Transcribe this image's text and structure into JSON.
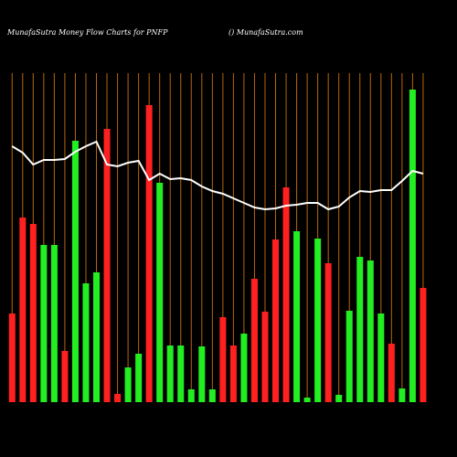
{
  "chart_data": {
    "type": "bar",
    "title": "MunafaSutra  Money Flow  Charts for PNFP",
    "subtitle": "() MunafaSutra.com",
    "categories": [
      null,
      null,
      null,
      null,
      null,
      null,
      null,
      null,
      null,
      null,
      null,
      null,
      null,
      null,
      null,
      null,
      null,
      null,
      null,
      null,
      null,
      null,
      null,
      null,
      null,
      null,
      null,
      null,
      null,
      null,
      null,
      null,
      null,
      null,
      null,
      null,
      null,
      null,
      null,
      null
    ],
    "ylim": [
      0,
      360
    ],
    "grid": true,
    "grid_color": "#b8650a",
    "series": [
      {
        "type": "bar",
        "values": [
          97,
          202,
          195,
          172,
          172,
          56,
          286,
          130,
          142,
          299,
          9,
          38,
          53,
          325,
          240,
          62,
          62,
          14,
          61,
          14,
          93,
          62,
          75,
          135,
          99,
          178,
          235,
          187,
          5,
          179,
          152,
          8,
          100,
          159,
          155,
          97,
          64,
          15,
          342,
          125
        ],
        "colors": [
          "#ff2020",
          "#ff2020",
          "#ff2020",
          "#22ee22",
          "#22ee22",
          "#ff2020",
          "#22ee22",
          "#22ee22",
          "#22ee22",
          "#ff2020",
          "#ff2020",
          "#22ee22",
          "#22ee22",
          "#ff2020",
          "#22ee22",
          "#22ee22",
          "#22ee22",
          "#22ee22",
          "#22ee22",
          "#22ee22",
          "#ff2020",
          "#ff2020",
          "#22ee22",
          "#ff2020",
          "#ff2020",
          "#ff2020",
          "#ff2020",
          "#22ee22",
          "#22ee22",
          "#22ee22",
          "#ff2020",
          "#22ee22",
          "#22ee22",
          "#22ee22",
          "#22ee22",
          "#22ee22",
          "#ff2020",
          "#22ee22",
          "#22ee22",
          "#ff2020"
        ]
      },
      {
        "type": "line",
        "color": "#ffffff",
        "values": [
          280,
          273,
          260,
          265,
          265,
          266,
          274,
          280,
          285,
          260,
          258,
          262,
          264,
          243,
          250,
          244,
          245,
          243,
          236,
          231,
          228,
          223,
          218,
          213,
          211,
          212,
          215,
          216,
          218,
          218,
          211,
          214,
          224,
          231,
          230,
          232,
          232,
          242,
          253,
          250
        ]
      }
    ]
  }
}
